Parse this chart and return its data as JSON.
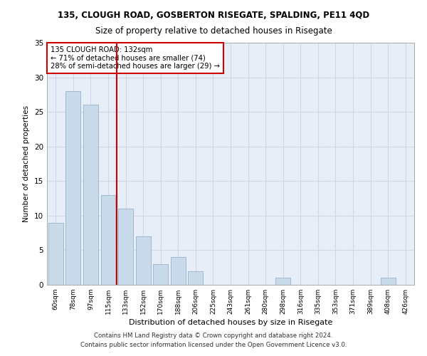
{
  "title": "135, CLOUGH ROAD, GOSBERTON RISEGATE, SPALDING, PE11 4QD",
  "subtitle": "Size of property relative to detached houses in Risegate",
  "xlabel": "Distribution of detached houses by size in Risegate",
  "ylabel": "Number of detached properties",
  "bar_labels": [
    "60sqm",
    "78sqm",
    "97sqm",
    "115sqm",
    "133sqm",
    "152sqm",
    "170sqm",
    "188sqm",
    "206sqm",
    "225sqm",
    "243sqm",
    "261sqm",
    "280sqm",
    "298sqm",
    "316sqm",
    "335sqm",
    "353sqm",
    "371sqm",
    "389sqm",
    "408sqm",
    "426sqm"
  ],
  "bar_values": [
    9,
    28,
    26,
    13,
    11,
    7,
    3,
    4,
    2,
    0,
    0,
    0,
    0,
    1,
    0,
    0,
    0,
    0,
    0,
    1,
    0
  ],
  "bar_color": "#c9daea",
  "bar_edgecolor": "#a0b8d0",
  "grid_color": "#d0d8e8",
  "background_color": "#e8eef8",
  "vline_x": 3.5,
  "vline_color": "#cc0000",
  "annotation_text": "135 CLOUGH ROAD: 132sqm\n← 71% of detached houses are smaller (74)\n28% of semi-detached houses are larger (29) →",
  "annotation_box_color": "#ffffff",
  "annotation_box_edgecolor": "#cc0000",
  "ylim": [
    0,
    35
  ],
  "yticks": [
    0,
    5,
    10,
    15,
    20,
    25,
    30,
    35
  ],
  "footer_line1": "Contains HM Land Registry data © Crown copyright and database right 2024.",
  "footer_line2": "Contains public sector information licensed under the Open Government Licence v3.0."
}
